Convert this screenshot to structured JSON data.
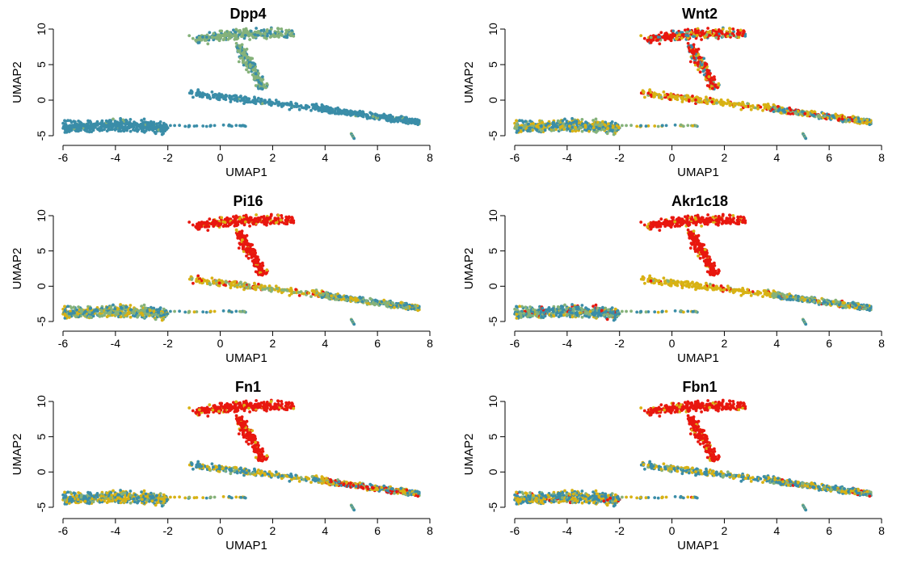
{
  "chart_data": [
    {
      "type": "scatter",
      "title": "Dpp4",
      "xlabel": "UMAP1",
      "ylabel": "UMAP2",
      "xlim": [
        -6,
        8
      ],
      "ylim": [
        -5,
        10
      ],
      "xticks": [
        "-6",
        "-4",
        "-2",
        "0",
        "2",
        "4",
        "6",
        "8"
      ],
      "yticks": [
        "-5",
        "0",
        "5",
        "10"
      ],
      "color_mix": {
        "top_branch": {
          "#85b27a": 0.7,
          "#3a8da8": 0.3
        },
        "middle_band": {
          "#3a8da8": 0.95,
          "#85b27a": 0.05
        },
        "left_cluster": {
          "#3a8da8": 0.97,
          "#85b27a": 0.03
        },
        "right_cluster": {
          "#3a8da8": 0.95,
          "#85b27a": 0.05
        }
      }
    },
    {
      "type": "scatter",
      "title": "Wnt2",
      "xlabel": "UMAP1",
      "ylabel": "UMAP2",
      "xlim": [
        -6,
        8
      ],
      "ylim": [
        -5,
        10
      ],
      "xticks": [
        "-6",
        "-4",
        "-2",
        "0",
        "2",
        "4",
        "6",
        "8"
      ],
      "yticks": [
        "-5",
        "0",
        "5",
        "10"
      ],
      "color_mix": {
        "top_branch": {
          "#e8170f": 0.6,
          "#d8b214": 0.2,
          "#3a8da8": 0.15,
          "#85b27a": 0.05
        },
        "middle_band": {
          "#d8b214": 0.7,
          "#e8170f": 0.2,
          "#85b27a": 0.1
        },
        "left_cluster": {
          "#3a8da8": 0.45,
          "#85b27a": 0.25,
          "#d8b214": 0.3
        },
        "right_cluster": {
          "#d8b214": 0.35,
          "#3a8da8": 0.3,
          "#85b27a": 0.2,
          "#e8170f": 0.15
        }
      }
    },
    {
      "type": "scatter",
      "title": "Pi16",
      "xlabel": "UMAP1",
      "ylabel": "UMAP2",
      "xlim": [
        -6,
        8
      ],
      "ylim": [
        -5,
        10
      ],
      "xticks": [
        "-6",
        "-4",
        "-2",
        "0",
        "2",
        "4",
        "6",
        "8"
      ],
      "yticks": [
        "-5",
        "0",
        "5",
        "10"
      ],
      "color_mix": {
        "top_branch": {
          "#e8170f": 0.9,
          "#d8b214": 0.1
        },
        "middle_band": {
          "#d8b214": 0.6,
          "#85b27a": 0.3,
          "#e8170f": 0.1
        },
        "left_cluster": {
          "#85b27a": 0.4,
          "#3a8da8": 0.35,
          "#d8b214": 0.25
        },
        "right_cluster": {
          "#85b27a": 0.45,
          "#3a8da8": 0.35,
          "#d8b214": 0.2
        }
      }
    },
    {
      "type": "scatter",
      "title": "Akr1c18",
      "xlabel": "UMAP1",
      "ylabel": "UMAP2",
      "xlim": [
        -6,
        8
      ],
      "ylim": [
        -5,
        10
      ],
      "xticks": [
        "-6",
        "-4",
        "-2",
        "0",
        "2",
        "4",
        "6",
        "8"
      ],
      "yticks": [
        "-5",
        "0",
        "5",
        "10"
      ],
      "color_mix": {
        "top_branch": {
          "#e8170f": 0.92,
          "#d8b214": 0.08
        },
        "middle_band": {
          "#d8b214": 0.85,
          "#e8170f": 0.1,
          "#85b27a": 0.05
        },
        "left_cluster": {
          "#3a8da8": 0.5,
          "#85b27a": 0.35,
          "#e8170f": 0.05,
          "#d8b214": 0.1
        },
        "right_cluster": {
          "#3a8da8": 0.4,
          "#85b27a": 0.35,
          "#d8b214": 0.2,
          "#e8170f": 0.05
        }
      }
    },
    {
      "type": "scatter",
      "title": "Fn1",
      "xlabel": "UMAP1",
      "ylabel": "UMAP2",
      "xlim": [
        -6,
        8
      ],
      "ylim": [
        -5,
        10
      ],
      "xticks": [
        "-6",
        "-4",
        "-2",
        "0",
        "2",
        "4",
        "6",
        "8"
      ],
      "yticks": [
        "-5",
        "0",
        "5",
        "10"
      ],
      "color_mix": {
        "top_branch": {
          "#e8170f": 0.88,
          "#d8b214": 0.12
        },
        "middle_band": {
          "#3a8da8": 0.45,
          "#d8b214": 0.4,
          "#85b27a": 0.15
        },
        "left_cluster": {
          "#3a8da8": 0.5,
          "#d8b214": 0.4,
          "#85b27a": 0.1
        },
        "right_cluster": {
          "#d8b214": 0.35,
          "#3a8da8": 0.3,
          "#e8170f": 0.25,
          "#85b27a": 0.1
        }
      }
    },
    {
      "type": "scatter",
      "title": "Fbn1",
      "xlabel": "UMAP1",
      "ylabel": "UMAP2",
      "xlim": [
        -6,
        8
      ],
      "ylim": [
        -5,
        10
      ],
      "xticks": [
        "-6",
        "-4",
        "-2",
        "0",
        "2",
        "4",
        "6",
        "8"
      ],
      "yticks": [
        "-5",
        "0",
        "5",
        "10"
      ],
      "color_mix": {
        "top_branch": {
          "#e8170f": 0.9,
          "#d8b214": 0.1
        },
        "middle_band": {
          "#3a8da8": 0.5,
          "#d8b214": 0.4,
          "#85b27a": 0.1
        },
        "left_cluster": {
          "#3a8da8": 0.45,
          "#d8b214": 0.4,
          "#85b27a": 0.12,
          "#e8170f": 0.03
        },
        "right_cluster": {
          "#3a8da8": 0.45,
          "#d8b214": 0.35,
          "#85b27a": 0.15,
          "#e8170f": 0.05
        }
      }
    }
  ],
  "colors": {
    "red": "#e8170f",
    "gold": "#d8b214",
    "sage": "#85b27a",
    "teal": "#3a8da8"
  }
}
